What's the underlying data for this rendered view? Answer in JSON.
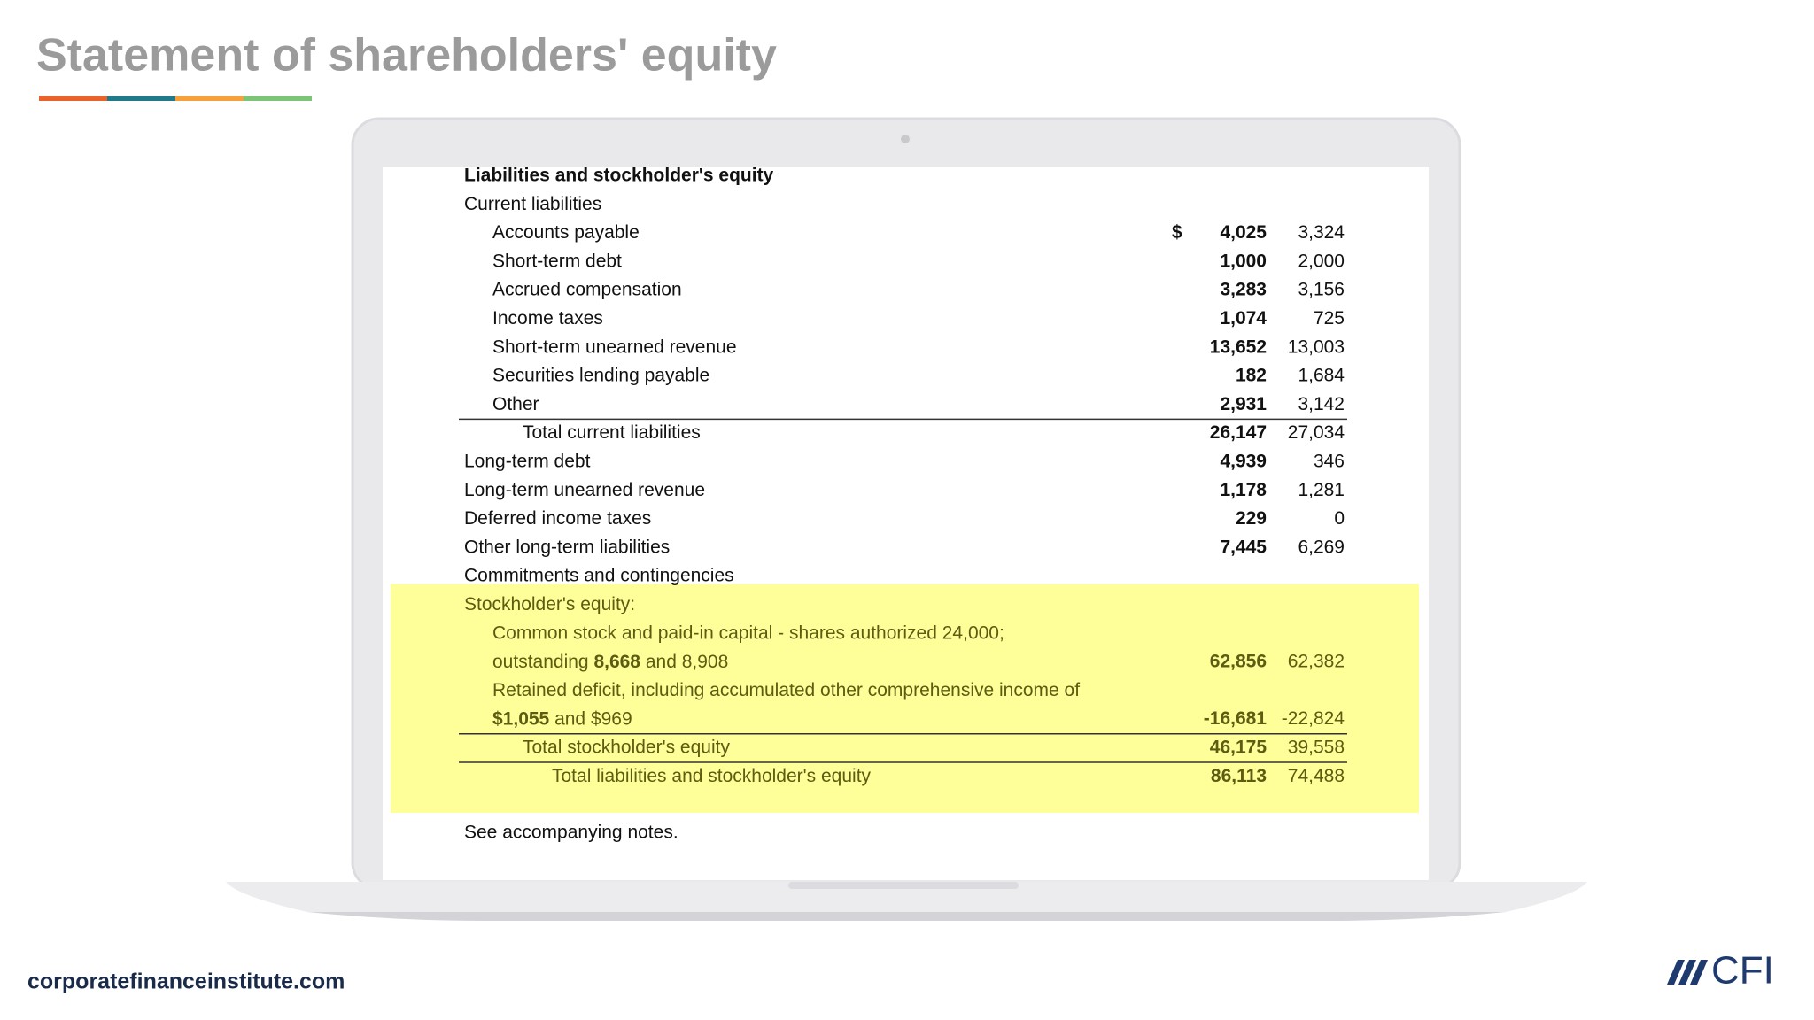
{
  "header": {
    "title": "Statement of shareholders' equity"
  },
  "table": {
    "title": "Liabilities and stockholder's equity",
    "currency_symbol": "$",
    "rows": [
      {
        "label": "Current liabilities",
        "indent": 0
      },
      {
        "label": "Accounts payable",
        "indent": 1,
        "current": "4,025",
        "prior": "3,324",
        "currency": true
      },
      {
        "label": "Short-term debt",
        "indent": 1,
        "current": "1,000",
        "prior": "2,000"
      },
      {
        "label": "Accrued compensation",
        "indent": 1,
        "current": "3,283",
        "prior": "3,156"
      },
      {
        "label": "Income taxes",
        "indent": 1,
        "current": "1,074",
        "prior": "725"
      },
      {
        "label": "Short-term unearned revenue",
        "indent": 1,
        "current": "13,652",
        "prior": "13,003"
      },
      {
        "label": "Securities lending payable",
        "indent": 1,
        "current": "182",
        "prior": "1,684"
      },
      {
        "label": "Other",
        "indent": 1,
        "current": "2,931",
        "prior": "3,142",
        "rule_below": true
      },
      {
        "label": "Total current liabilities",
        "indent": 2,
        "current": "26,147",
        "prior": "27,034"
      },
      {
        "label": "Long-term debt",
        "indent": 0,
        "current": "4,939",
        "prior": "346"
      },
      {
        "label": "Long-term unearned revenue",
        "indent": 0,
        "current": "1,178",
        "prior": "1,281"
      },
      {
        "label": "Deferred income taxes",
        "indent": 0,
        "current": "229",
        "prior": "0"
      },
      {
        "label": "Other long-term liabilities",
        "indent": 0,
        "current": "7,445",
        "prior": "6,269"
      },
      {
        "label": "Commitments and contingencies",
        "indent": 0
      },
      {
        "label": "Stockholder's equity:",
        "indent": 0,
        "highlight": true
      },
      {
        "label": "Common stock and paid-in capital - shares authorized 24,000;",
        "indent": 1,
        "highlight": true
      },
      {
        "label_parts": [
          {
            "text": "outstanding "
          },
          {
            "text": "8,668",
            "bold": true
          },
          {
            "text": " and 8,908"
          }
        ],
        "indent": 1,
        "current": "62,856",
        "prior": "62,382",
        "highlight": true
      },
      {
        "label": "Retained deficit, including accumulated other comprehensive income of",
        "indent": 1,
        "highlight": true
      },
      {
        "label_parts": [
          {
            "text": "$1,055",
            "bold": true
          },
          {
            "text": " and $969"
          }
        ],
        "indent": 1,
        "current": "-16,681",
        "prior": "-22,824",
        "highlight": true,
        "rule_below": true
      },
      {
        "label": "Total stockholder's equity",
        "indent": 2,
        "current": "46,175",
        "prior": "39,558",
        "highlight": true,
        "rule_below": true
      },
      {
        "label": "Total liabilities and stockholder's equity",
        "indent": 3,
        "current": "86,113",
        "prior": "74,488",
        "highlight": true
      }
    ],
    "note": "See accompanying notes."
  },
  "footer": {
    "website": "corporatefinanceinstitute.com",
    "logo": "CFI"
  }
}
